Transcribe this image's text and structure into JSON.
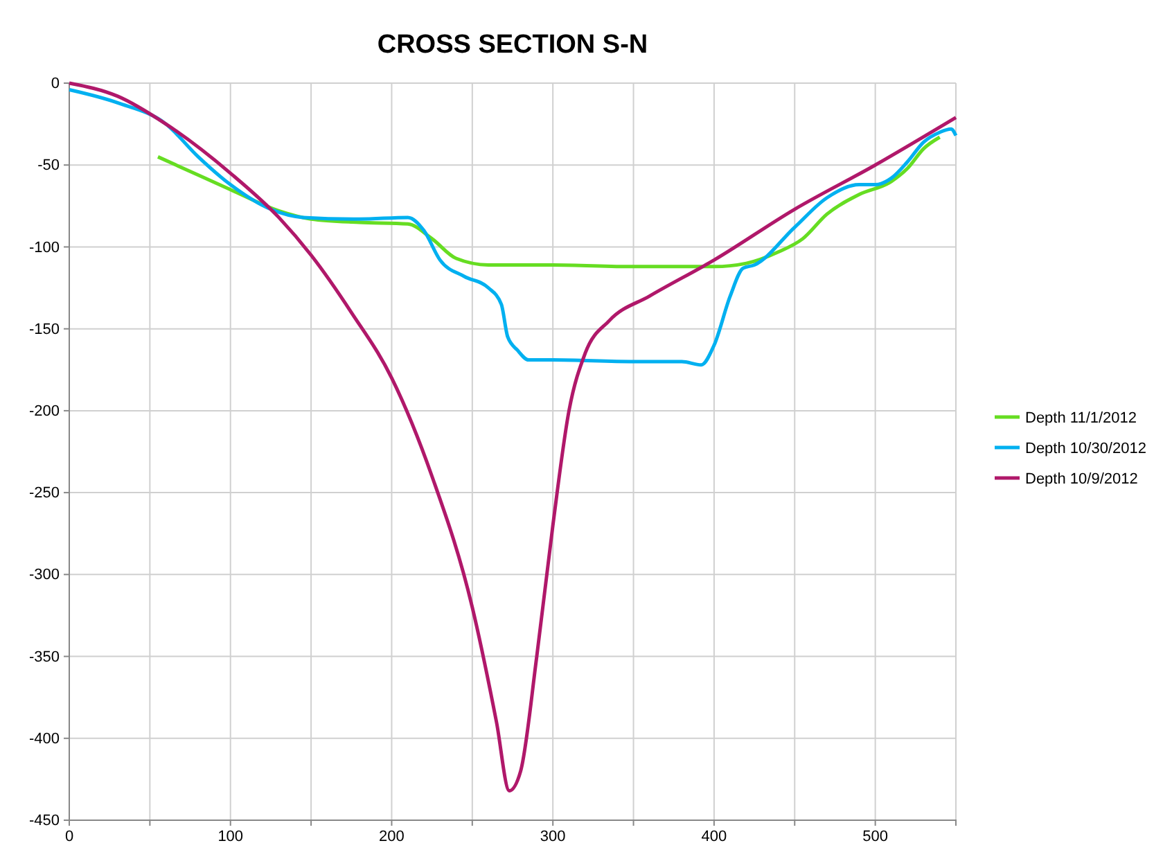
{
  "chart_data": {
    "type": "line",
    "title": "CROSS SECTION S-N",
    "xlim": [
      0,
      550
    ],
    "ylim": [
      -450,
      0
    ],
    "xticks": [
      0,
      {
        "value": 50,
        "label": null
      },
      100,
      {
        "value": 150,
        "label": null
      },
      200,
      {
        "value": 250,
        "label": null
      },
      300,
      {
        "value": 350,
        "label": null
      },
      400,
      {
        "value": 450,
        "label": null
      },
      500,
      {
        "value": 550,
        "label": null
      }
    ],
    "yticks": [
      -450,
      -400,
      -350,
      -300,
      -250,
      -200,
      -150,
      -100,
      -50,
      0
    ],
    "grid": true,
    "legend": "right",
    "marker": "none",
    "line_style": "solid",
    "series": [
      {
        "name": "Depth 11/1/2012",
        "color": "#66dd22",
        "x": [
          55,
          100,
          130,
          150,
          180,
          210,
          225,
          240,
          260,
          300,
          350,
          400,
          420,
          440,
          455,
          470,
          490,
          510,
          520,
          530,
          540
        ],
        "values": [
          -45,
          -65,
          -78,
          -83,
          -85,
          -86,
          -95,
          -107,
          -111,
          -111,
          -112,
          -112,
          -110,
          -103,
          -95,
          -80,
          -68,
          -60,
          -52,
          -40,
          -33
        ]
      },
      {
        "name": "Depth 10/30/2012",
        "color": "#00b0f0",
        "x": [
          0,
          30,
          60,
          80,
          100,
          125,
          145,
          180,
          210,
          220,
          230,
          245,
          260,
          268,
          272,
          278,
          285,
          300,
          350,
          380,
          392,
          400,
          410,
          418,
          425,
          450,
          470,
          490,
          500,
          510,
          520,
          530,
          540,
          547,
          550
        ],
        "values": [
          -4,
          -12,
          -25,
          -45,
          -62,
          -77,
          -82,
          -83,
          -82,
          -90,
          -108,
          -118,
          -125,
          -135,
          -155,
          -163,
          -169,
          -169,
          -170,
          -170,
          -172,
          -160,
          -130,
          -113,
          -111,
          -88,
          -70,
          -62,
          -62,
          -58,
          -48,
          -36,
          -30,
          -28,
          -32
        ]
      },
      {
        "name": "Depth 10/9/2012",
        "color": "#b0186a",
        "x": [
          0,
          30,
          60,
          100,
          130,
          150,
          175,
          200,
          225,
          250,
          265,
          273,
          280,
          290,
          300,
          310,
          320,
          335,
          360,
          400,
          450,
          500,
          550
        ],
        "values": [
          0,
          -8,
          -25,
          -55,
          -82,
          -105,
          -140,
          -180,
          -240,
          -320,
          -390,
          -432,
          -420,
          -350,
          -270,
          -200,
          -165,
          -145,
          -130,
          -108,
          -77,
          -50,
          -21
        ]
      }
    ]
  }
}
